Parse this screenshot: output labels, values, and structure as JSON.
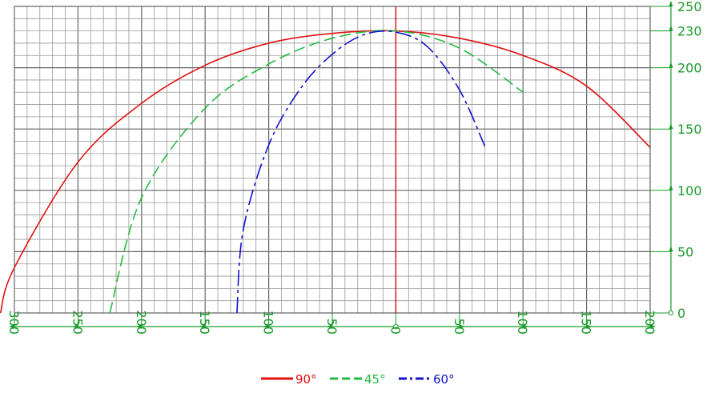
{
  "chart_data": {
    "type": "line",
    "title": "",
    "xlabel": "",
    "ylabel": "",
    "xlim": [
      300,
      -200
    ],
    "ylim": [
      0,
      250
    ],
    "x_tick_labels": [
      "300",
      "250",
      "200",
      "150",
      "100",
      "50",
      "0",
      "50",
      "100",
      "150",
      "200"
    ],
    "y_tick_labels": [
      "0",
      "50",
      "100",
      "150",
      "200",
      "230",
      "250"
    ],
    "y_tick_values": [
      0,
      50,
      100,
      150,
      200,
      230,
      250
    ],
    "grid": true,
    "legend_position": "bottom-center",
    "axis_color": "#1a9a2a",
    "vertical_reference_line": {
      "x": 0,
      "color": "#dd1111"
    },
    "series": [
      {
        "name": "90°",
        "color": "#e01010",
        "dash": "solid",
        "x": [
          311,
          300,
          250,
          200,
          150,
          100,
          50,
          0,
          -50,
          -100,
          -150,
          -200
        ],
        "y": [
          0,
          37,
          123,
          171,
          202,
          220,
          228,
          230,
          224,
          210,
          185,
          135
        ]
      },
      {
        "name": "45°",
        "color": "#22bb44",
        "dash": "dashed",
        "x": [
          225,
          200,
          150,
          100,
          50,
          0,
          -50,
          -100
        ],
        "y": [
          0,
          94,
          167,
          203,
          224,
          230,
          216,
          180
        ]
      },
      {
        "name": "60°",
        "color": "#1111cc",
        "dash": "dashdot",
        "x": [
          125,
          120,
          100,
          75,
          50,
          25,
          0,
          -25,
          -50,
          -70
        ],
        "y": [
          0,
          68,
          137,
          183,
          211,
          227,
          229,
          217,
          182,
          136
        ]
      }
    ]
  }
}
